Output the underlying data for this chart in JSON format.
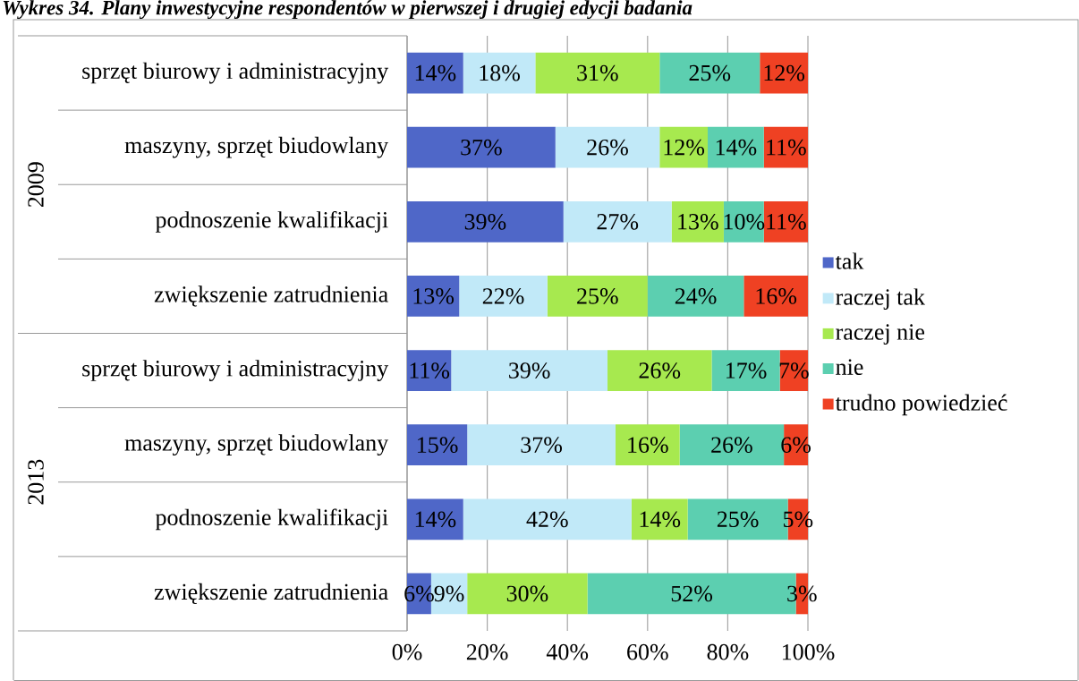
{
  "chart_data": {
    "type": "bar",
    "orientation": "horizontal",
    "stacked": true,
    "title": "Wykres 34. Plany inwestycyjne respondentów w pierwszej i drugiej edycji badania",
    "categories": [
      "sprzęt biurowy i administracyjny",
      "maszyny, sprzęt biudowlany",
      "podnoszenie kwalifikacji",
      "zwiększenie zatrudnienia",
      "sprzęt biurowy i administracyjny",
      "maszyny, sprzęt biudowlany",
      "podnoszenie kwalifikacji",
      "zwiększenie zatrudnienia"
    ],
    "annotations": [
      "2009",
      "2013"
    ],
    "series": [
      {
        "name": "tak",
        "color": "#4f67c8",
        "values": [
          14,
          37,
          39,
          13,
          11,
          15,
          14,
          6
        ],
        "value_labels": [
          "14%",
          "37%",
          "39%",
          "13%",
          "11%",
          "15%",
          "14%",
          "6%"
        ]
      },
      {
        "name": "raczej tak",
        "color": "#c1e9f8",
        "values": [
          18,
          26,
          27,
          22,
          39,
          37,
          42,
          9
        ],
        "value_labels": [
          "18%",
          "26%",
          "27%",
          "22%",
          "39%",
          "37%",
          "42%",
          "9%"
        ]
      },
      {
        "name": "raczej nie",
        "color": "#a7e94f",
        "values": [
          31,
          12,
          13,
          25,
          26,
          16,
          14,
          30
        ],
        "value_labels": [
          "31%",
          "12%",
          "13%",
          "25%",
          "26%",
          "16%",
          "14%",
          "30%"
        ]
      },
      {
        "name": "nie",
        "color": "#5ccfb0",
        "values": [
          25,
          14,
          10,
          24,
          17,
          26,
          25,
          52
        ],
        "value_labels": [
          "25%",
          "14%",
          "10%",
          "24%",
          "17%",
          "26%",
          "25%",
          "52%"
        ]
      },
      {
        "name": "trudno powiedzieć",
        "color": "#ef4123",
        "values": [
          12,
          11,
          11,
          16,
          7,
          6,
          5,
          3
        ],
        "value_labels": [
          "12%",
          "11%",
          "11%",
          "16%",
          "7%",
          "6%",
          "5%",
          "3%"
        ]
      }
    ],
    "xlim": [
      0,
      100
    ],
    "xticks": [
      {
        "value": 0,
        "label": "0%"
      },
      {
        "value": 20,
        "label": "20%"
      },
      {
        "value": 40,
        "label": "40%"
      },
      {
        "value": 60,
        "label": "60%"
      },
      {
        "value": 80,
        "label": "80%"
      },
      {
        "value": 100,
        "label": "100%"
      }
    ],
    "grid": "x",
    "legend": "right"
  }
}
